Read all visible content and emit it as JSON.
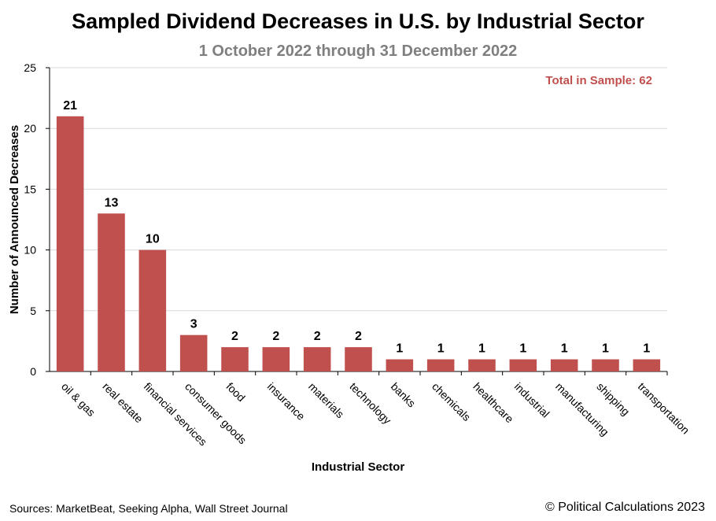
{
  "header": {
    "title": "Sampled Dividend Decreases in U.S. by Industrial Sector",
    "subtitle": "1 October 2022 through 31 December 2022"
  },
  "footer": {
    "sources": "Sources: MarketBeat, Seeking Alpha, Wall Street Journal",
    "copyright": "© Political Calculations 2023"
  },
  "colors": {
    "bar": "#c0504d",
    "annotation": "#c0504d",
    "subtitle": "#7f7f7f",
    "grid": "#d9d9d9"
  },
  "chart_data": {
    "type": "bar",
    "title": "Sampled Dividend Decreases in U.S. by Industrial Sector",
    "subtitle": "1 October 2022 through 31 December 2022",
    "xlabel": "Industrial Sector",
    "ylabel": "Number of Announced Decreases",
    "ylim": [
      0,
      25
    ],
    "yticks": [
      0,
      5,
      10,
      15,
      20,
      25
    ],
    "grid": true,
    "annotation": "Total in Sample: 62",
    "categories": [
      "oil & gas",
      "real estate",
      "financial services",
      "consumer goods",
      "food",
      "insurance",
      "materials",
      "technology",
      "banks",
      "chemicals",
      "healthcare",
      "industrial",
      "manufacturing",
      "shipping",
      "transportation"
    ],
    "values": [
      21,
      13,
      10,
      3,
      2,
      2,
      2,
      2,
      1,
      1,
      1,
      1,
      1,
      1,
      1
    ]
  }
}
